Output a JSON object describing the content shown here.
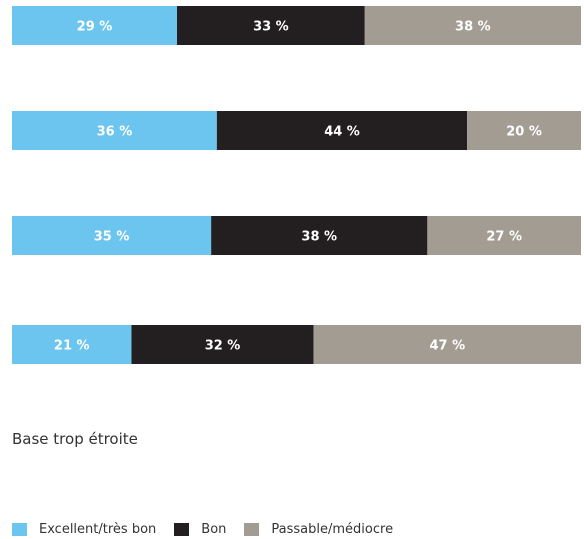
{
  "chart_data": {
    "type": "bar",
    "orientation": "horizontal",
    "stacked": true,
    "normalized": true,
    "xlim": [
      0,
      100
    ],
    "categories": [
      "",
      "",
      "",
      ""
    ],
    "series": [
      {
        "name": "Excellent/très bon",
        "color": "#6CC5EF",
        "values": [
          29,
          36,
          35,
          21
        ],
        "labels": [
          "29 %",
          "36 %",
          "35 %",
          "21 %"
        ]
      },
      {
        "name": "Bon",
        "color": "#231F20",
        "values": [
          33,
          44,
          38,
          32
        ],
        "labels": [
          "33 %",
          "44 %",
          "38 %",
          "32 %"
        ]
      },
      {
        "name": "Passable/médiocre",
        "color": "#A39C92",
        "values": [
          38,
          20,
          27,
          47
        ],
        "labels": [
          "38 %",
          "20 %",
          "27 %",
          "47 %"
        ]
      }
    ],
    "grid": false,
    "legend_position": "bottom-left"
  },
  "note": "Base trop étroite",
  "legend": [
    {
      "label": "Excellent/très bon",
      "color": "#6CC5EF"
    },
    {
      "label": "Bon",
      "color": "#231F20"
    },
    {
      "label": "Passable/médiocre",
      "color": "#A39C92"
    }
  ]
}
